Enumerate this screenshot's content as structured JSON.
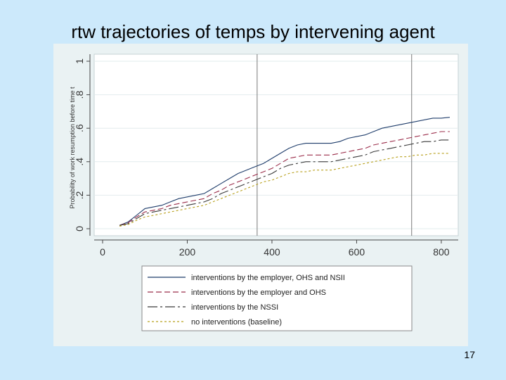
{
  "slide": {
    "title": "rtw trajectories of temps by intervening agent",
    "page_number": "17"
  },
  "chart_data": {
    "type": "line",
    "title": "rtw trajectories of temps by intervening agent",
    "xlabel": "",
    "ylabel": "Probability of work resumption before time t",
    "xlim": [
      0,
      830
    ],
    "ylim": [
      0,
      1
    ],
    "x_ticks": [
      0,
      200,
      400,
      600,
      800
    ],
    "x_tick_labels": [
      "0",
      "200",
      "400",
      "600",
      "800"
    ],
    "y_ticks": [
      0,
      0.2,
      0.4,
      0.6,
      0.8,
      1
    ],
    "y_tick_labels": [
      "0",
      ".2",
      ".4",
      ".6",
      ".8",
      "1"
    ],
    "reference_lines_x": [
      365,
      730
    ],
    "grid": true,
    "legend_position": "bottom",
    "x": [
      40,
      60,
      80,
      100,
      120,
      140,
      160,
      180,
      200,
      220,
      240,
      260,
      280,
      300,
      320,
      340,
      360,
      380,
      400,
      420,
      440,
      460,
      480,
      500,
      520,
      540,
      560,
      580,
      600,
      620,
      640,
      660,
      680,
      700,
      720,
      740,
      760,
      780,
      800,
      820
    ],
    "series": [
      {
        "name": "interventions by the employer, OHS and NSII",
        "color": "#1f3d6b",
        "dash": "solid",
        "values": [
          0.02,
          0.04,
          0.08,
          0.12,
          0.13,
          0.14,
          0.16,
          0.18,
          0.19,
          0.2,
          0.21,
          0.24,
          0.27,
          0.3,
          0.33,
          0.35,
          0.37,
          0.39,
          0.42,
          0.45,
          0.48,
          0.5,
          0.51,
          0.51,
          0.51,
          0.51,
          0.52,
          0.54,
          0.55,
          0.56,
          0.58,
          0.6,
          0.61,
          0.62,
          0.63,
          0.64,
          0.65,
          0.66,
          0.66,
          0.665
        ]
      },
      {
        "name": "interventions by the employer and OHS",
        "color": "#9b2d4a",
        "dash": "8,4",
        "values": [
          0.02,
          0.035,
          0.07,
          0.1,
          0.11,
          0.12,
          0.14,
          0.15,
          0.16,
          0.17,
          0.18,
          0.21,
          0.23,
          0.26,
          0.28,
          0.3,
          0.32,
          0.34,
          0.36,
          0.39,
          0.42,
          0.43,
          0.44,
          0.44,
          0.44,
          0.44,
          0.45,
          0.46,
          0.47,
          0.48,
          0.5,
          0.51,
          0.52,
          0.53,
          0.54,
          0.55,
          0.56,
          0.57,
          0.58,
          0.58
        ]
      },
      {
        "name": "interventions by the NSSI",
        "color": "#3a3a3a",
        "dash": "14,4,3,4",
        "values": [
          0.02,
          0.03,
          0.06,
          0.09,
          0.1,
          0.11,
          0.12,
          0.13,
          0.14,
          0.15,
          0.16,
          0.18,
          0.21,
          0.23,
          0.25,
          0.27,
          0.29,
          0.31,
          0.33,
          0.36,
          0.38,
          0.39,
          0.4,
          0.4,
          0.4,
          0.4,
          0.41,
          0.42,
          0.43,
          0.44,
          0.46,
          0.47,
          0.48,
          0.49,
          0.5,
          0.51,
          0.52,
          0.52,
          0.53,
          0.53
        ]
      },
      {
        "name": "no interventions (baseline)",
        "color": "#b8a01c",
        "dash": "3,3",
        "values": [
          0.015,
          0.025,
          0.05,
          0.07,
          0.08,
          0.09,
          0.1,
          0.11,
          0.12,
          0.13,
          0.14,
          0.16,
          0.18,
          0.2,
          0.22,
          0.24,
          0.26,
          0.28,
          0.29,
          0.31,
          0.33,
          0.34,
          0.34,
          0.35,
          0.35,
          0.35,
          0.36,
          0.37,
          0.38,
          0.39,
          0.4,
          0.41,
          0.42,
          0.43,
          0.43,
          0.44,
          0.44,
          0.45,
          0.45,
          0.45
        ]
      }
    ]
  }
}
